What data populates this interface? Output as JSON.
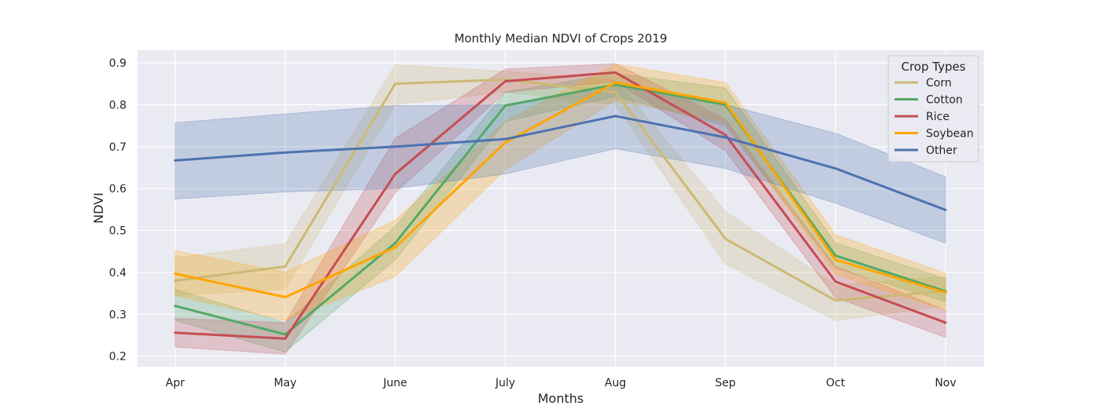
{
  "chart_data": {
    "type": "line",
    "title": "Monthly Median NDVI of Crops 2019",
    "xlabel": "Months",
    "ylabel": "NDVI",
    "categories": [
      "Apr",
      "May",
      "June",
      "July",
      "Aug",
      "Sep",
      "Oct",
      "Nov"
    ],
    "ylim": [
      0.175,
      0.93
    ],
    "yticks": [
      0.2,
      0.3,
      0.4,
      0.5,
      0.6,
      0.7,
      0.8,
      0.9
    ],
    "ytick_labels": [
      "0.2",
      "0.3",
      "0.4",
      "0.5",
      "0.6",
      "0.7",
      "0.8",
      "0.9"
    ],
    "grid": true,
    "legend": {
      "title": "Crop Types",
      "placement": "top-right"
    },
    "series": [
      {
        "name": "Corn",
        "color": "#ccb974",
        "values": [
          0.38,
          0.414,
          0.85,
          0.86,
          0.83,
          0.48,
          0.333,
          0.355
        ],
        "lower": [
          0.345,
          0.36,
          0.8,
          0.83,
          0.8,
          0.42,
          0.285,
          0.32
        ],
        "upper": [
          0.435,
          0.468,
          0.895,
          0.88,
          0.86,
          0.545,
          0.37,
          0.39
        ]
      },
      {
        "name": "Cotton",
        "color": "#55a868",
        "values": [
          0.32,
          0.252,
          0.47,
          0.798,
          0.848,
          0.8,
          0.44,
          0.355
        ],
        "lower": [
          0.285,
          0.21,
          0.43,
          0.76,
          0.82,
          0.75,
          0.41,
          0.33
        ],
        "upper": [
          0.36,
          0.28,
          0.51,
          0.83,
          0.875,
          0.84,
          0.47,
          0.385
        ]
      },
      {
        "name": "Rice",
        "color": "#c44e52",
        "values": [
          0.256,
          0.242,
          0.635,
          0.856,
          0.877,
          0.728,
          0.378,
          0.28
        ],
        "lower": [
          0.222,
          0.205,
          0.59,
          0.83,
          0.855,
          0.69,
          0.34,
          0.245
        ],
        "upper": [
          0.29,
          0.28,
          0.72,
          0.885,
          0.898,
          0.765,
          0.415,
          0.31
        ]
      },
      {
        "name": "Soybean",
        "color": "#ffa500",
        "values": [
          0.397,
          0.341,
          0.46,
          0.71,
          0.853,
          0.805,
          0.43,
          0.352
        ],
        "lower": [
          0.345,
          0.285,
          0.39,
          0.645,
          0.81,
          0.76,
          0.395,
          0.31
        ],
        "upper": [
          0.452,
          0.4,
          0.525,
          0.76,
          0.897,
          0.853,
          0.49,
          0.398
        ]
      },
      {
        "name": "Other",
        "color": "#4c72b0",
        "values": [
          0.667,
          0.686,
          0.7,
          0.718,
          0.773,
          0.722,
          0.648,
          0.549
        ],
        "lower": [
          0.575,
          0.592,
          0.6,
          0.635,
          0.695,
          0.648,
          0.565,
          0.47
        ],
        "upper": [
          0.757,
          0.778,
          0.798,
          0.8,
          0.85,
          0.8,
          0.732,
          0.628
        ]
      }
    ]
  }
}
